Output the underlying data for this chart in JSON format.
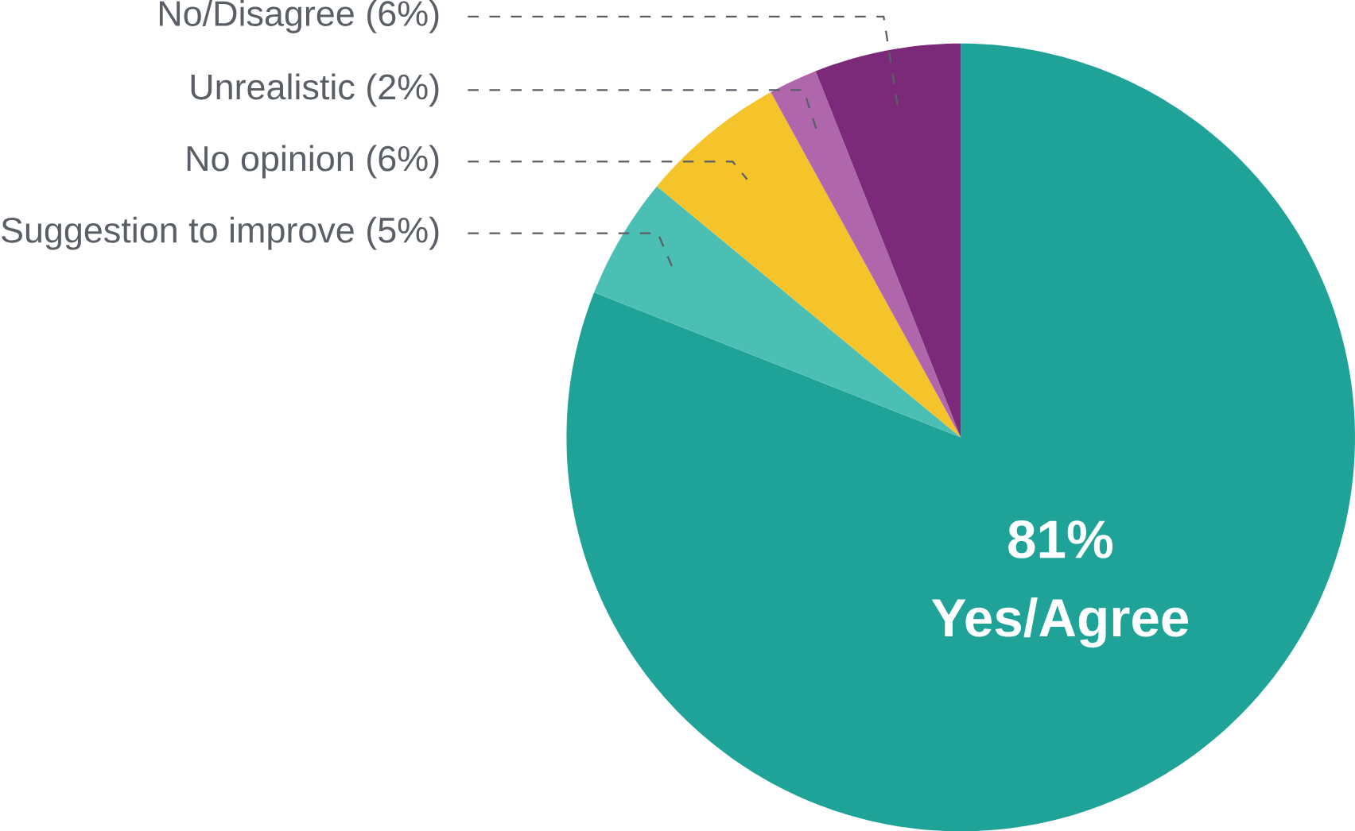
{
  "chart_data": {
    "type": "pie",
    "categories": [
      "Yes/Agree",
      "Suggestion to improve",
      "No opinion",
      "Unrealistic",
      "No/Disagree"
    ],
    "values": [
      81,
      5,
      6,
      2,
      6
    ],
    "colors": [
      "#1fa398",
      "#4cbfb5",
      "#f4c42a",
      "#b066aa",
      "#7b2a7a"
    ],
    "value_labels": [
      "81%",
      "(5%)",
      "(6%)",
      "(2%)",
      "(6%)"
    ]
  }
}
